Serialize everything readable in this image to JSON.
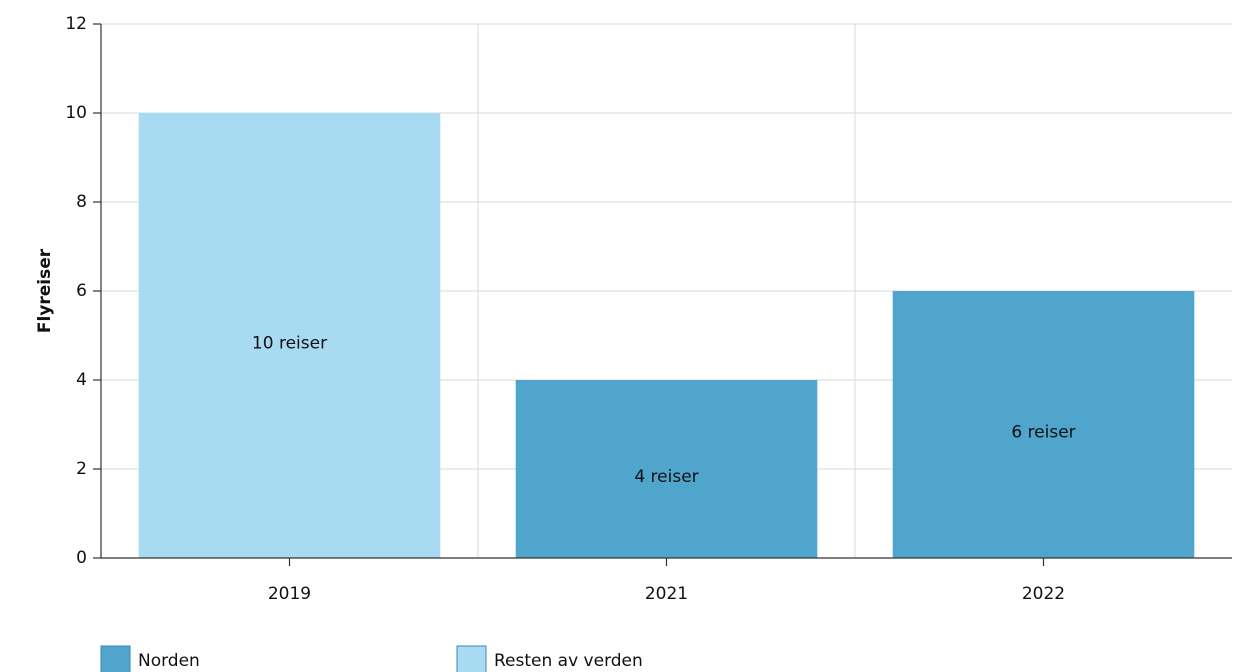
{
  "chart_data": {
    "type": "stacked_bar",
    "categories": [
      "2019",
      "2021",
      "2022"
    ],
    "series": [
      {
        "name": "Norden",
        "color": "#4fa5cc",
        "values": [
          0,
          4,
          6
        ],
        "value_labels": [
          null,
          "4 reiser",
          "6 reiser"
        ]
      },
      {
        "name": "Resten av verden",
        "color": "#a8daf2",
        "values": [
          10,
          0,
          0
        ],
        "value_labels": [
          "10 reiser",
          null,
          null
        ]
      }
    ],
    "y_label": "Flyreiser",
    "ylim": [
      0,
      12
    ],
    "yticks": [
      0,
      2,
      4,
      6,
      8,
      10,
      12
    ],
    "grid": true,
    "legend": "bottom"
  }
}
